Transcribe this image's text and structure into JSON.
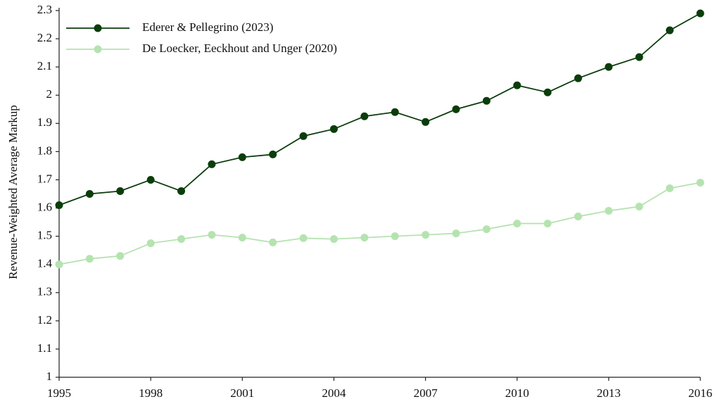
{
  "chart_data": {
    "type": "line",
    "y_label": "Revenue-Weighted Average Markup",
    "x": [
      1995,
      1996,
      1997,
      1998,
      1999,
      2000,
      2001,
      2002,
      2003,
      2004,
      2005,
      2006,
      2007,
      2008,
      2009,
      2010,
      2011,
      2012,
      2013,
      2014,
      2015,
      2016
    ],
    "series": [
      {
        "name": "Ederer & Pellegrino (2023)",
        "color": "#0b3d0b",
        "values": [
          1.61,
          1.65,
          1.66,
          1.7,
          1.66,
          1.755,
          1.78,
          1.79,
          1.855,
          1.88,
          1.925,
          1.94,
          1.905,
          1.95,
          1.98,
          2.035,
          2.01,
          2.06,
          2.1,
          2.135,
          2.23,
          2.29
        ]
      },
      {
        "name": "De Loecker, Eeckhout and Unger (2020)",
        "color": "#b5e3b0",
        "values": [
          1.4,
          1.42,
          1.43,
          1.475,
          1.49,
          1.505,
          1.495,
          1.478,
          1.493,
          1.49,
          1.495,
          1.5,
          1.505,
          1.51,
          1.525,
          1.545,
          1.545,
          1.57,
          1.59,
          1.605,
          1.67,
          1.69
        ]
      }
    ],
    "xlim": [
      1995,
      2016
    ],
    "xticks": [
      1995,
      1998,
      2001,
      2004,
      2007,
      2010,
      2013,
      2016
    ],
    "ylim": [
      1,
      2.3
    ],
    "yticks": [
      1,
      1.1,
      1.2,
      1.3,
      1.4,
      1.5,
      1.6,
      1.7,
      1.8,
      1.9,
      2,
      2.1,
      2.2,
      2.3
    ],
    "legend": "upper left",
    "grid": false
  }
}
